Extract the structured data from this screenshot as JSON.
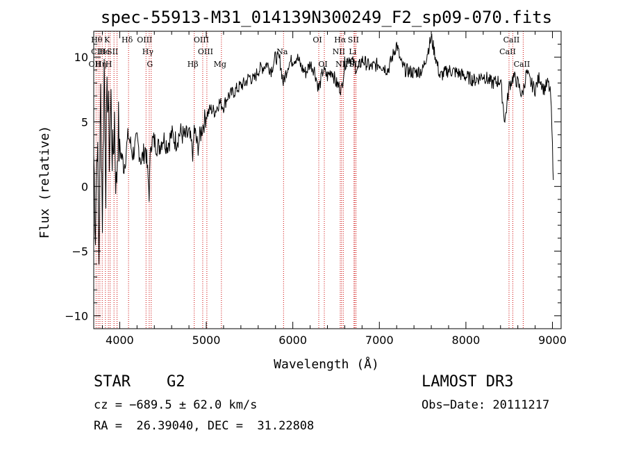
{
  "chart_data": {
    "type": "line",
    "title": "spec-55913-M31_014139N300249_F2_sp09-070.fits",
    "xlabel": "Wavelength (Å)",
    "ylabel": "Flux (relative)",
    "xlim": [
      3700,
      9100
    ],
    "ylim": [
      -11,
      12
    ],
    "xticks": [
      4000,
      5000,
      6000,
      7000,
      8000,
      9000
    ],
    "yticks": [
      -10,
      -5,
      0,
      5,
      10
    ],
    "series": [
      {
        "name": "flux",
        "x": [
          3700,
          3720,
          3740,
          3760,
          3780,
          3800,
          3820,
          3840,
          3860,
          3880,
          3900,
          3920,
          3940,
          3960,
          3980,
          4000,
          4050,
          4100,
          4150,
          4200,
          4250,
          4300,
          4340,
          4360,
          4400,
          4450,
          4500,
          4550,
          4600,
          4650,
          4700,
          4750,
          4800,
          4850,
          4860,
          4900,
          4950,
          5000,
          5050,
          5100,
          5150,
          5200,
          5250,
          5300,
          5350,
          5400,
          5450,
          5500,
          5550,
          5600,
          5650,
          5700,
          5750,
          5800,
          5850,
          5890,
          5950,
          6000,
          6050,
          6100,
          6150,
          6200,
          6250,
          6300,
          6350,
          6400,
          6450,
          6500,
          6563,
          6600,
          6650,
          6700,
          6750,
          6800,
          6900,
          7000,
          7100,
          7200,
          7250,
          7300,
          7400,
          7500,
          7600,
          7700,
          7800,
          7900,
          8000,
          8100,
          8200,
          8300,
          8400,
          8450,
          8500,
          8550,
          8600,
          8650,
          8700,
          8750,
          8800,
          8850,
          8900,
          8950,
          8980,
          9000,
          9010
        ],
        "values": [
          2.5,
          -3.0,
          4.5,
          -5.5,
          7.0,
          -2.0,
          9.5,
          1.0,
          8.0,
          3.0,
          6.5,
          1.5,
          5.5,
          -0.5,
          4.5,
          3.0,
          1.5,
          4.0,
          2.5,
          3.5,
          2.0,
          3.0,
          -0.5,
          3.5,
          3.5,
          3.0,
          3.8,
          3.2,
          4.0,
          3.5,
          4.2,
          3.8,
          4.0,
          2.5,
          4.5,
          3.0,
          4.5,
          5.5,
          6.0,
          5.8,
          6.5,
          6.2,
          7.0,
          7.2,
          7.5,
          7.8,
          8.0,
          8.5,
          8.2,
          9.0,
          9.2,
          9.5,
          9.0,
          10.0,
          9.8,
          8.0,
          9.5,
          9.8,
          10.0,
          9.2,
          8.8,
          9.5,
          9.0,
          7.5,
          9.0,
          8.5,
          9.0,
          8.0,
          7.5,
          9.5,
          10.0,
          9.5,
          9.0,
          9.8,
          9.2,
          9.5,
          9.0,
          11.0,
          9.5,
          9.0,
          8.8,
          9.0,
          11.5,
          8.5,
          9.0,
          8.8,
          8.5,
          8.2,
          8.6,
          8.0,
          8.2,
          5.0,
          7.8,
          8.5,
          8.0,
          7.0,
          8.8,
          8.0,
          7.5,
          8.5,
          7.5,
          8.0,
          7.0,
          3.0,
          0.5
        ]
      }
    ],
    "lines": [
      {
        "w": 3727,
        "labels": [
          "OII"
        ],
        "row": 3
      },
      {
        "w": 3750,
        "labels": [
          "Hθ"
        ],
        "row": 1
      },
      {
        "w": 3771,
        "labels": [
          "CIII"
        ],
        "row": 2
      },
      {
        "w": 3798,
        "labels": [
          "Hη"
        ],
        "row": 3
      },
      {
        "w": 3835,
        "labels": [
          "He"
        ],
        "row": 2
      },
      {
        "w": 3869,
        "labels": [
          "K"
        ],
        "row": 1
      },
      {
        "w": 3889,
        "labels": [
          "H"
        ],
        "row": 3
      },
      {
        "w": 3934,
        "labels": [
          "SII"
        ],
        "row": 2
      },
      {
        "w": 3969,
        "labels": [],
        "row": 1
      },
      {
        "w": 4102,
        "labels": [
          "Hδ"
        ],
        "row": 1
      },
      {
        "w": 4304,
        "labels": [
          "OIII"
        ],
        "row": 1
      },
      {
        "w": 4341,
        "labels": [
          "Hγ"
        ],
        "row": 2
      },
      {
        "w": 4364,
        "labels": [
          "G"
        ],
        "row": 3
      },
      {
        "w": 4861,
        "labels": [
          "Hβ"
        ],
        "row": 3
      },
      {
        "w": 4959,
        "labels": [
          "OIII"
        ],
        "row": 1
      },
      {
        "w": 5007,
        "labels": [
          "OIII"
        ],
        "row": 2
      },
      {
        "w": 5175,
        "labels": [
          "Mg"
        ],
        "row": 3
      },
      {
        "w": 5893,
        "labels": [
          "Na"
        ],
        "row": 2
      },
      {
        "w": 6300,
        "labels": [
          "OI"
        ],
        "row": 1
      },
      {
        "w": 6364,
        "labels": [
          "OI"
        ],
        "row": 3
      },
      {
        "w": 6548,
        "labels": [
          "NII"
        ],
        "row": 2
      },
      {
        "w": 6563,
        "labels": [
          "Hα"
        ],
        "row": 1
      },
      {
        "w": 6583,
        "labels": [
          "NII"
        ],
        "row": 3
      },
      {
        "w": 6716,
        "labels": [
          "SII"
        ],
        "row": 1
      },
      {
        "w": 6707,
        "labels": [
          "Li"
        ],
        "row": 2
      },
      {
        "w": 6731,
        "labels": [
          "SII"
        ],
        "row": 3
      },
      {
        "w": 8498,
        "labels": [
          "CaII"
        ],
        "row": 2
      },
      {
        "w": 8542,
        "labels": [
          "CaII"
        ],
        "row": 1
      },
      {
        "w": 8662,
        "labels": [
          "CaII"
        ],
        "row": 3
      }
    ]
  },
  "info": {
    "object_class": "STAR",
    "subclass": "G2",
    "survey": "LAMOST DR3",
    "cz": "cz = −689.5 ± 62.0 km/s",
    "obs_date": "Obs−Date: 20111217",
    "coords": "RA =  26.39040, DEC =  31.22808"
  },
  "style": {
    "line_color": "#000000",
    "marker_color": "#cc0000",
    "background": "#ffffff"
  }
}
